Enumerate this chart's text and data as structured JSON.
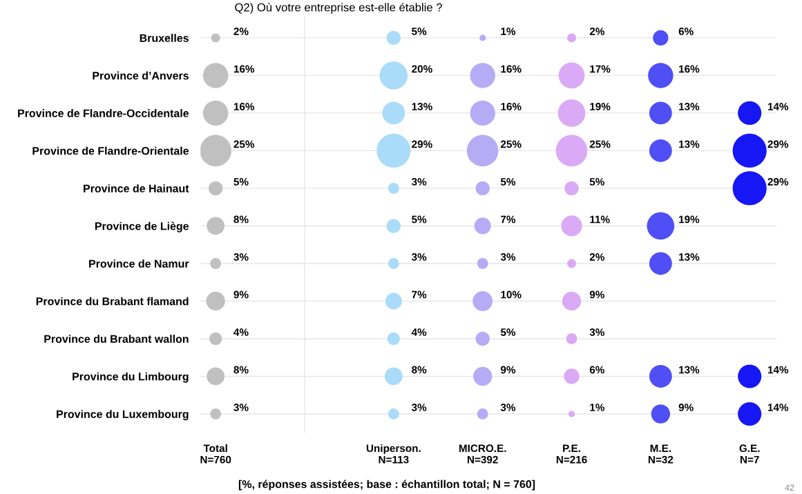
{
  "chart_data": {
    "type": "other",
    "title": "Q2) Où votre entreprise est-elle établie ?",
    "categories": [
      "Bruxelles",
      "Province d’Anvers",
      "Province de Flandre-Occidentale",
      "Province de Flandre-Orientale",
      "Province de Hainaut",
      "Province de Liège",
      "Province de Namur",
      "Province du Brabant flamand",
      "Province du Brabant wallon",
      "Province du Limbourg",
      "Province du Luxembourg"
    ],
    "series": [
      {
        "color": "#c0c0c0",
        "values": [
          2,
          16,
          16,
          25,
          5,
          8,
          3,
          9,
          4,
          8,
          3
        ],
        "value_labels": [
          "2%",
          "16%",
          "16%",
          "25%",
          "5%",
          "8%",
          "3%",
          "9%",
          "4%",
          "8%",
          "3%"
        ]
      },
      {
        "color": "#aadcfa",
        "values": [
          5,
          20,
          13,
          29,
          3,
          5,
          3,
          7,
          4,
          8,
          3
        ],
        "value_labels": [
          "5%",
          "20%",
          "13%",
          "29%",
          "3%",
          "5%",
          "3%",
          "7%",
          "4%",
          "8%",
          "3%"
        ]
      },
      {
        "color": "#b6acf6",
        "values": [
          1,
          16,
          16,
          25,
          5,
          7,
          3,
          10,
          5,
          9,
          3
        ],
        "value_labels": [
          "1%",
          "16%",
          "16%",
          "25%",
          "5%",
          "7%",
          "3%",
          "10%",
          "5%",
          "9%",
          "3%"
        ]
      },
      {
        "color": "#daaaf6",
        "values": [
          2,
          17,
          19,
          25,
          5,
          11,
          2,
          9,
          3,
          6,
          1
        ],
        "value_labels": [
          "2%",
          "17%",
          "19%",
          "25%",
          "5%",
          "11%",
          "2%",
          "9%",
          "3%",
          "6%",
          "1%"
        ]
      },
      {
        "color": "#4f4ff5",
        "values": [
          6,
          16,
          13,
          13,
          null,
          19,
          13,
          null,
          null,
          13,
          9
        ],
        "value_labels": [
          "6%",
          "16%",
          "13%",
          "13%",
          null,
          "19%",
          "13%",
          null,
          null,
          "13%",
          "9%"
        ]
      },
      {
        "color": "#1717f5",
        "values": [
          null,
          null,
          14,
          29,
          29,
          null,
          null,
          null,
          null,
          14,
          14
        ],
        "value_labels": [
          null,
          null,
          "14%",
          "29%",
          "29%",
          null,
          null,
          null,
          null,
          "14%",
          "14%"
        ]
      }
    ],
    "legend": false,
    "annotations": [
      "Total\nN=760",
      "Uniperson.\nN=113",
      "MICRO.E.\nN=392",
      "P.E.\nN=216",
      "M.E.\nN=32",
      "G.E.\nN=7",
      "[%, réponses assistées; base : échantillon total; N = 760]",
      "42"
    ]
  }
}
